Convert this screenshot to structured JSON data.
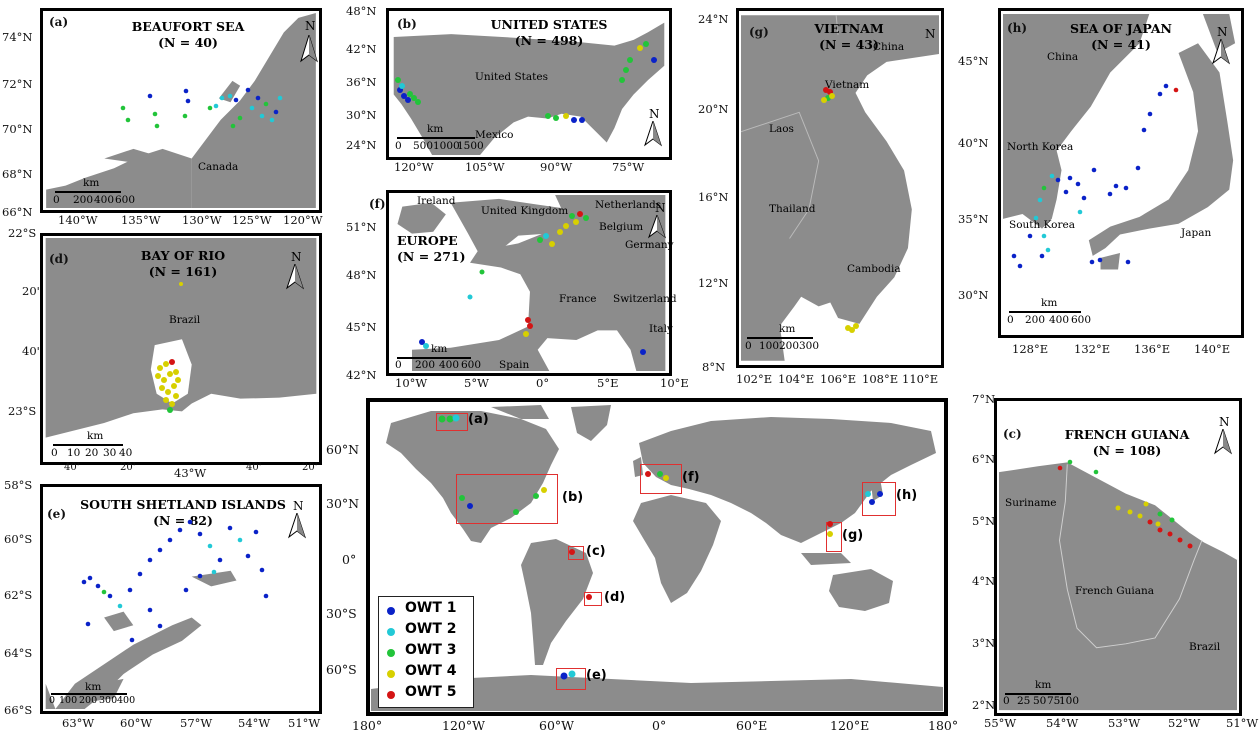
{
  "colors": {
    "land": "#8c8c8c",
    "owt1": "#0a22c8",
    "owt2": "#22c9d6",
    "owt3": "#22c43a",
    "owt4": "#d7d000",
    "owt5": "#d41414",
    "box": "#e03030"
  },
  "legend": [
    {
      "label": "OWT 1"
    },
    {
      "label": "OWT 2"
    },
    {
      "label": "OWT 3"
    },
    {
      "label": "OWT 4"
    },
    {
      "label": "OWT 5"
    }
  ],
  "world": {
    "lat_ticks": [
      "60°N",
      "30°N",
      "0°",
      "30°S",
      "60°S"
    ],
    "lon_ticks": [
      "180°",
      "120°W",
      "60°W",
      "0°",
      "60°E",
      "120°E",
      "180°"
    ],
    "boxes": [
      "(a)",
      "(b)",
      "(c)",
      "(d)",
      "(e)",
      "(f)",
      "(g)",
      "(h)"
    ]
  },
  "panels": {
    "a": {
      "letter": "(a)",
      "title": "BEAUFORT SEA",
      "n": "(N = 40)",
      "north": "N",
      "lat_ticks": [
        "74°N",
        "72°N",
        "70°N",
        "68°N",
        "66°N"
      ],
      "lon_ticks": [
        "140°W",
        "135°W",
        "130°W",
        "125°W",
        "120°W"
      ],
      "places": [
        "Canada"
      ],
      "scale_unit": "km",
      "scale_ticks": [
        "0",
        "200",
        "400",
        "600"
      ]
    },
    "b": {
      "letter": "(b)",
      "title": "UNITED STATES",
      "n": "(N = 498)",
      "north": "N",
      "lat_ticks": [
        "48°N",
        "42°N",
        "36°N",
        "30°N",
        "24°N"
      ],
      "lon_ticks": [
        "120°W",
        "105°W",
        "90°W",
        "75°W"
      ],
      "places": [
        "United States",
        "Mexico"
      ],
      "scale_unit": "km",
      "scale_ticks": [
        "0",
        "500",
        "1000",
        "1500"
      ]
    },
    "f": {
      "letter": "(f)",
      "title": "EUROPE",
      "n": "(N = 271)",
      "north": "N",
      "lat_ticks": [
        "51°N",
        "48°N",
        "45°N",
        "42°N"
      ],
      "lon_ticks": [
        "10°W",
        "5°W",
        "0°",
        "5°E",
        "10°E"
      ],
      "places": [
        "Ireland",
        "United Kingdom",
        "Netherlands",
        "Belgium",
        "Germany",
        "France",
        "Switzerland",
        "Italy",
        "Spain"
      ],
      "scale_unit": "km",
      "scale_ticks": [
        "0",
        "200",
        "400",
        "600"
      ]
    },
    "g": {
      "letter": "(g)",
      "title": "VIETNAM",
      "n": "(N = 43)",
      "north": "N",
      "lat_ticks": [
        "24°N",
        "20°N",
        "16°N",
        "12°N",
        "8°N"
      ],
      "lon_ticks": [
        "102°E",
        "104°E",
        "106°E",
        "108°E",
        "110°E"
      ],
      "places": [
        "China",
        "Vietnam",
        "Laos",
        "Thailand",
        "Cambodia"
      ],
      "scale_unit": "km",
      "scale_ticks": [
        "0",
        "100",
        "200",
        "300"
      ]
    },
    "h": {
      "letter": "(h)",
      "title": "SEA OF JAPAN",
      "n": "(N = 41)",
      "north": "N",
      "lat_ticks": [
        "45°N",
        "40°N",
        "35°N",
        "30°N"
      ],
      "lon_ticks": [
        "128°E",
        "132°E",
        "136°E",
        "140°E"
      ],
      "places": [
        "China",
        "North Korea",
        "South Korea",
        "Japan"
      ],
      "scale_unit": "km",
      "scale_ticks": [
        "0",
        "200",
        "400",
        "600"
      ]
    },
    "d": {
      "letter": "(d)",
      "title": "BAY OF RIO",
      "n": "(N = 161)",
      "north": "N",
      "lat_ticks": [
        "22°S",
        "20'",
        "40'",
        "23°S"
      ],
      "lon_ticks": [
        "40'",
        "20'",
        "43°W",
        "40'",
        "20'"
      ],
      "places": [
        "Brazil"
      ],
      "scale_unit": "km",
      "scale_ticks": [
        "0",
        "10",
        "20",
        "30",
        "40"
      ]
    },
    "e": {
      "letter": "(e)",
      "title": "SOUTH SHETLAND ISLANDS",
      "n": "(N = 82)",
      "north": "N",
      "lat_ticks": [
        "58°S",
        "60°S",
        "62°S",
        "64°S",
        "66°S"
      ],
      "lon_ticks": [
        "63°W",
        "60°W",
        "57°W",
        "54°W",
        "51°W"
      ],
      "scale_unit": "km",
      "scale_ticks": [
        "0",
        "100",
        "200",
        "300",
        "400"
      ]
    },
    "c": {
      "letter": "(c)",
      "title": "FRENCH GUIANA",
      "n": "(N = 108)",
      "north": "N",
      "lat_ticks": [
        "7°N",
        "6°N",
        "5°N",
        "4°N",
        "3°N",
        "2°N"
      ],
      "lon_ticks": [
        "55°W",
        "54°W",
        "53°W",
        "52°W",
        "51°W"
      ],
      "places": [
        "Suriname",
        "French Guiana",
        "Brazil"
      ],
      "scale_unit": "km",
      "scale_ticks": [
        "0",
        "25",
        "50",
        "75",
        "100"
      ]
    }
  }
}
